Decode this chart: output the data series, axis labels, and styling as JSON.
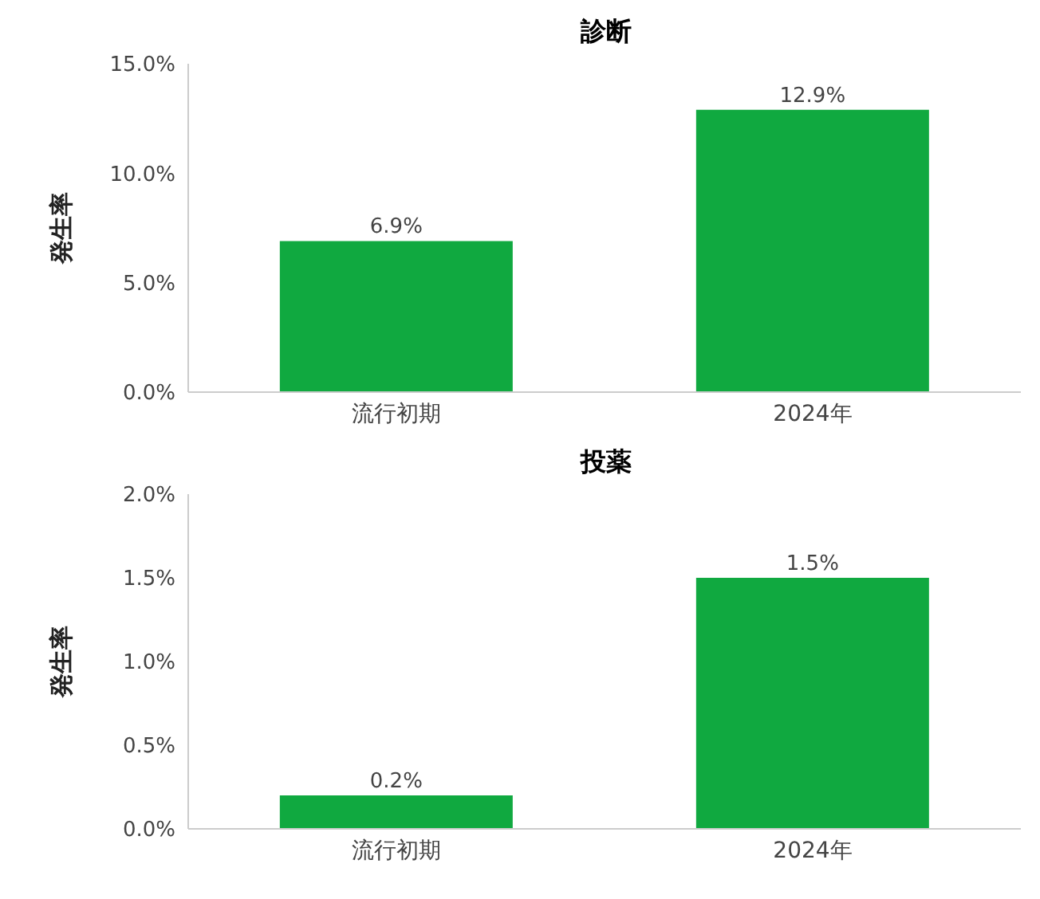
{
  "chart_data": [
    {
      "type": "bar",
      "title": "診断",
      "ylabel": "発生率",
      "categories": [
        "流行初期",
        "2024年"
      ],
      "values": [
        6.9,
        12.9
      ],
      "value_labels": [
        "6.9%",
        "12.9%"
      ],
      "color": "#10a940",
      "ylim": [
        0,
        15
      ],
      "yticks": [
        {
          "value": 0,
          "label": "0.0%"
        },
        {
          "value": 5,
          "label": "5.0%"
        },
        {
          "value": 10,
          "label": "10.0%"
        },
        {
          "value": 15,
          "label": "15.0%"
        }
      ],
      "grid": false,
      "legend": false
    },
    {
      "type": "bar",
      "title": "投薬",
      "ylabel": "発生率",
      "categories": [
        "流行初期",
        "2024年"
      ],
      "values": [
        0.2,
        1.5
      ],
      "value_labels": [
        "0.2%",
        "1.5%"
      ],
      "color": "#10a940",
      "ylim": [
        0,
        2
      ],
      "yticks": [
        {
          "value": 0,
          "label": "0.0%"
        },
        {
          "value": 0.5,
          "label": "0.5%"
        },
        {
          "value": 1,
          "label": "1.0%"
        },
        {
          "value": 1.5,
          "label": "1.5%"
        },
        {
          "value": 2,
          "label": "2.0%"
        }
      ],
      "grid": false,
      "legend": false
    }
  ]
}
